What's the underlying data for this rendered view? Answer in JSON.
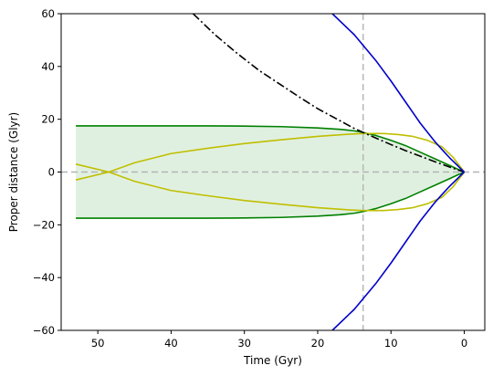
{
  "chart_data": {
    "type": "line",
    "title": "",
    "xlabel": "Time (Gyr)",
    "ylabel": "Proper distance (Glyr)",
    "xlim": [
      55,
      -2.8
    ],
    "ylim": [
      -60,
      60
    ],
    "x_ticks": [
      50,
      40,
      30,
      20,
      10,
      0
    ],
    "y_ticks": [
      -60,
      -40,
      -20,
      0,
      20,
      40,
      60
    ],
    "grid": false,
    "legend": "none",
    "reference_lines": [
      {
        "orientation": "vertical",
        "value": 13.8,
        "color": "#b3b3b3",
        "style": "dashed"
      },
      {
        "orientation": "horizontal",
        "value": 0,
        "color": "#b3b3b3",
        "style": "dashed"
      }
    ],
    "filled_region": {
      "color": "#008000",
      "opacity": 0.12
    },
    "series": [
      {
        "color": "#008000",
        "style": "solid",
        "x": [
          53,
          45,
          40,
          35,
          30,
          25,
          20,
          17,
          15,
          13.8,
          12,
          10,
          8,
          6,
          4,
          2,
          1,
          0
        ],
        "y": [
          17.5,
          17.5,
          17.5,
          17.5,
          17.4,
          17.2,
          16.7,
          16.2,
          15.6,
          15.0,
          13.8,
          12.0,
          10.0,
          7.5,
          5.0,
          2.5,
          1.2,
          0
        ]
      },
      {
        "color": "#008000",
        "style": "solid",
        "x": [
          53,
          45,
          40,
          35,
          30,
          25,
          20,
          17,
          15,
          13.8,
          12,
          10,
          8,
          6,
          4,
          2,
          1,
          0
        ],
        "y": [
          -17.5,
          -17.5,
          -17.5,
          -17.5,
          -17.4,
          -17.2,
          -16.7,
          -16.2,
          -15.6,
          -15.0,
          -13.8,
          -12.0,
          -10.0,
          -7.5,
          -5.0,
          -2.5,
          -1.2,
          0
        ]
      },
      {
        "color": "#bfbf00",
        "style": "solid",
        "x": [
          53,
          48.5,
          45,
          40,
          35,
          30,
          25,
          20,
          16,
          13.8,
          11,
          9,
          7,
          5,
          3,
          1.5,
          0
        ],
        "y": [
          -3.0,
          0,
          3.5,
          7.0,
          9.0,
          10.8,
          12.2,
          13.5,
          14.3,
          14.6,
          14.6,
          14.2,
          13.5,
          12.0,
          9.5,
          5.5,
          0
        ]
      },
      {
        "color": "#bfbf00",
        "style": "solid",
        "x": [
          53,
          48.5,
          45,
          40,
          35,
          30,
          25,
          20,
          16,
          13.8,
          11,
          9,
          7,
          5,
          3,
          1.5,
          0
        ],
        "y": [
          3.0,
          0,
          -3.5,
          -7.0,
          -9.0,
          -10.8,
          -12.2,
          -13.5,
          -14.3,
          -14.6,
          -14.6,
          -14.2,
          -13.5,
          -12.0,
          -9.5,
          -5.5,
          0
        ]
      },
      {
        "color": "#000000",
        "style": "dashdot",
        "x": [
          37,
          34,
          31,
          28,
          25,
          22,
          20,
          17,
          15,
          13.8,
          12,
          10,
          8,
          6,
          4,
          2,
          1,
          0
        ],
        "y": [
          60,
          52,
          45,
          38.5,
          33,
          27.5,
          24,
          19.5,
          16.5,
          15.0,
          12.8,
          10.4,
          8.1,
          6.0,
          3.9,
          1.9,
          0.9,
          0
        ]
      },
      {
        "color": "#0000cc",
        "style": "solid",
        "x": [
          18,
          15,
          12,
          10,
          8,
          6,
          4,
          3,
          2,
          1,
          0.5,
          0
        ],
        "y": [
          60,
          52,
          42,
          34.5,
          26.5,
          18.5,
          11.5,
          8.4,
          5.4,
          2.7,
          1.3,
          0
        ]
      },
      {
        "color": "#0000cc",
        "style": "solid",
        "x": [
          18,
          15,
          12,
          10,
          8,
          6,
          4,
          3,
          2,
          1,
          0.5,
          0
        ],
        "y": [
          -60,
          -52,
          -42,
          -34.5,
          -26.5,
          -18.5,
          -11.5,
          -8.4,
          -5.4,
          -2.7,
          -1.3,
          0
        ]
      }
    ]
  }
}
